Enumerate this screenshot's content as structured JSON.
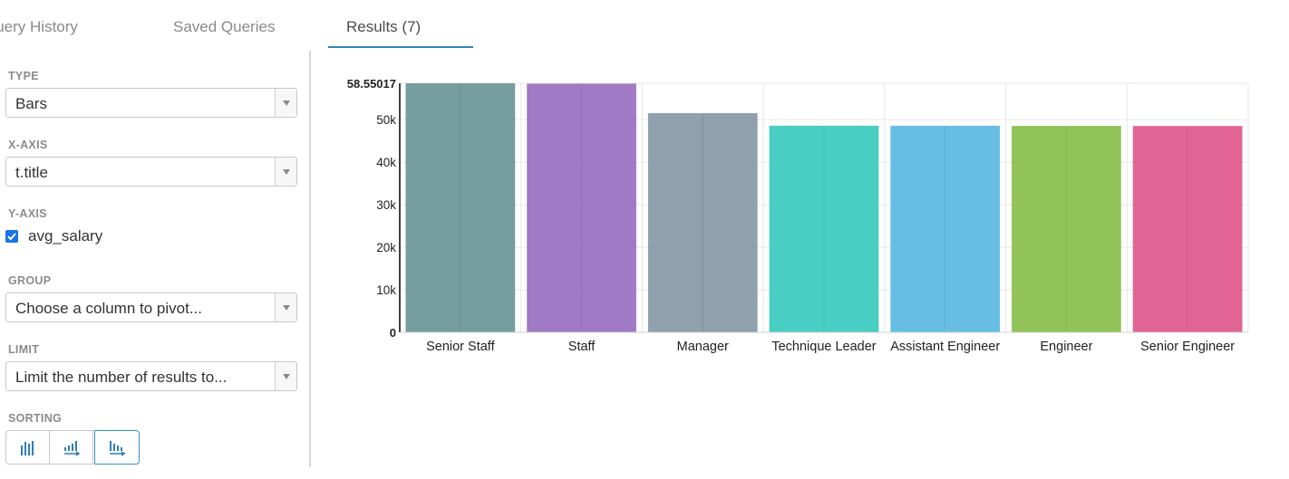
{
  "tabs": {
    "query_history": "Query History",
    "saved_queries": "Saved Queries",
    "results": "Results (7)"
  },
  "sidebar": {
    "type": {
      "label": "TYPE",
      "value": "Bars"
    },
    "x_axis": {
      "label": "X-AXIS",
      "value": "t.title"
    },
    "y_axis": {
      "label": "Y-AXIS",
      "checkbox_label": "avg_salary",
      "checked": true
    },
    "group": {
      "label": "GROUP",
      "value": "Choose a column to pivot..."
    },
    "limit": {
      "label": "LIMIT",
      "value": "Limit the number of results to..."
    },
    "sorting": {
      "label": "SORTING",
      "buttons": [
        {
          "icon": "bars-default-order-icon",
          "active": false
        },
        {
          "icon": "sort-ascending-icon",
          "active": false
        },
        {
          "icon": "sort-descending-icon",
          "active": true
        }
      ]
    }
  },
  "chart_data": {
    "type": "bar",
    "categories": [
      "Senior Staff",
      "Staff",
      "Manager",
      "Technique Leader",
      "Assistant Engineer",
      "Engineer",
      "Senior Engineer"
    ],
    "values": [
      58550.17,
      58465.38,
      51531.04,
      48582.9,
      48564.43,
      48535.34,
      48506.8
    ],
    "colors": [
      "#6f9898",
      "#9b73c1",
      "#889ca8",
      "#3ecbbf",
      "#5fbae4",
      "#8cc04f",
      "#e05c8f"
    ],
    "y_ticks": [
      "0",
      "10k",
      "20k",
      "30k",
      "40k",
      "50k",
      "58.55017"
    ],
    "y_tick_values": [
      0,
      10000,
      20000,
      30000,
      40000,
      50000,
      58550.17
    ],
    "ylim": [
      0,
      58550.17
    ],
    "grid": true,
    "title": "",
    "xlabel": "",
    "ylabel": ""
  }
}
